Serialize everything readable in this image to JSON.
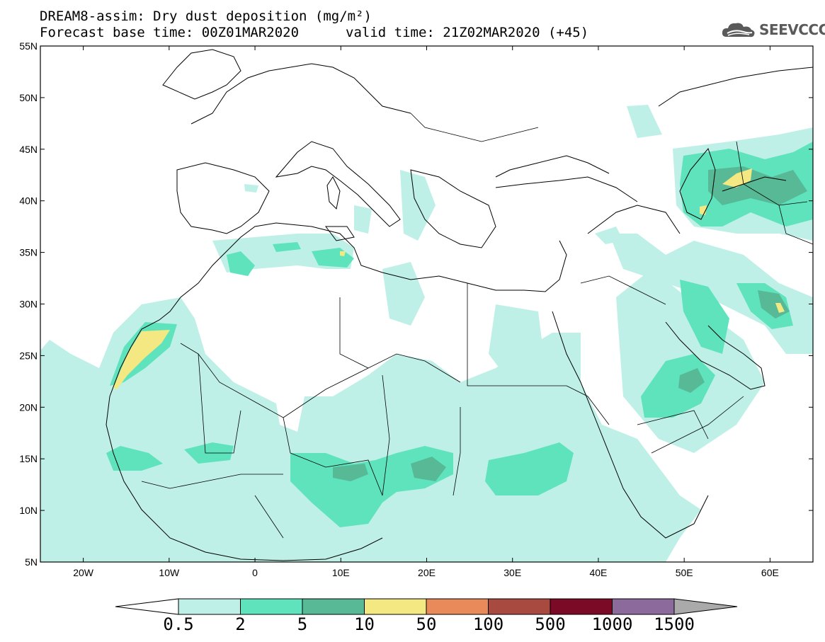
{
  "title": {
    "line1": "DREAM8-assim: Dry dust deposition (mg/m²)",
    "base_time": "Forecast base time: 00Z01MAR2020",
    "valid_time": "valid time: 21Z02MAR2020 (+45)"
  },
  "logo": {
    "text": "SEEVCCC",
    "icon": "cloud-icon"
  },
  "map": {
    "lon_range": [
      -25,
      65
    ],
    "lat_range": [
      5,
      55
    ],
    "lat_ticks": [
      "55N",
      "50N",
      "45N",
      "40N",
      "35N",
      "30N",
      "25N",
      "20N",
      "15N",
      "10N",
      "5N"
    ],
    "lon_ticks": [
      "20W",
      "10W",
      "0",
      "10E",
      "20E",
      "30E",
      "40E",
      "50E",
      "60E"
    ]
  },
  "colorbar": {
    "labels": [
      "0.5",
      "2",
      "5",
      "10",
      "50",
      "100",
      "500",
      "1000",
      "1500"
    ],
    "colors": [
      "#bff0e8",
      "#5ee3bd",
      "#57b995",
      "#f4e882",
      "#e98a5b",
      "#a84a3f",
      "#7a0a26",
      "#8c6a9c"
    ],
    "end_colors": {
      "low": "#ffffff",
      "high": "#aaaaaa"
    }
  },
  "colors": {
    "level1": "#bff0e8",
    "level2": "#5ee3bd",
    "level3": "#57b995",
    "level4": "#f4e882",
    "coast": "#000000"
  }
}
